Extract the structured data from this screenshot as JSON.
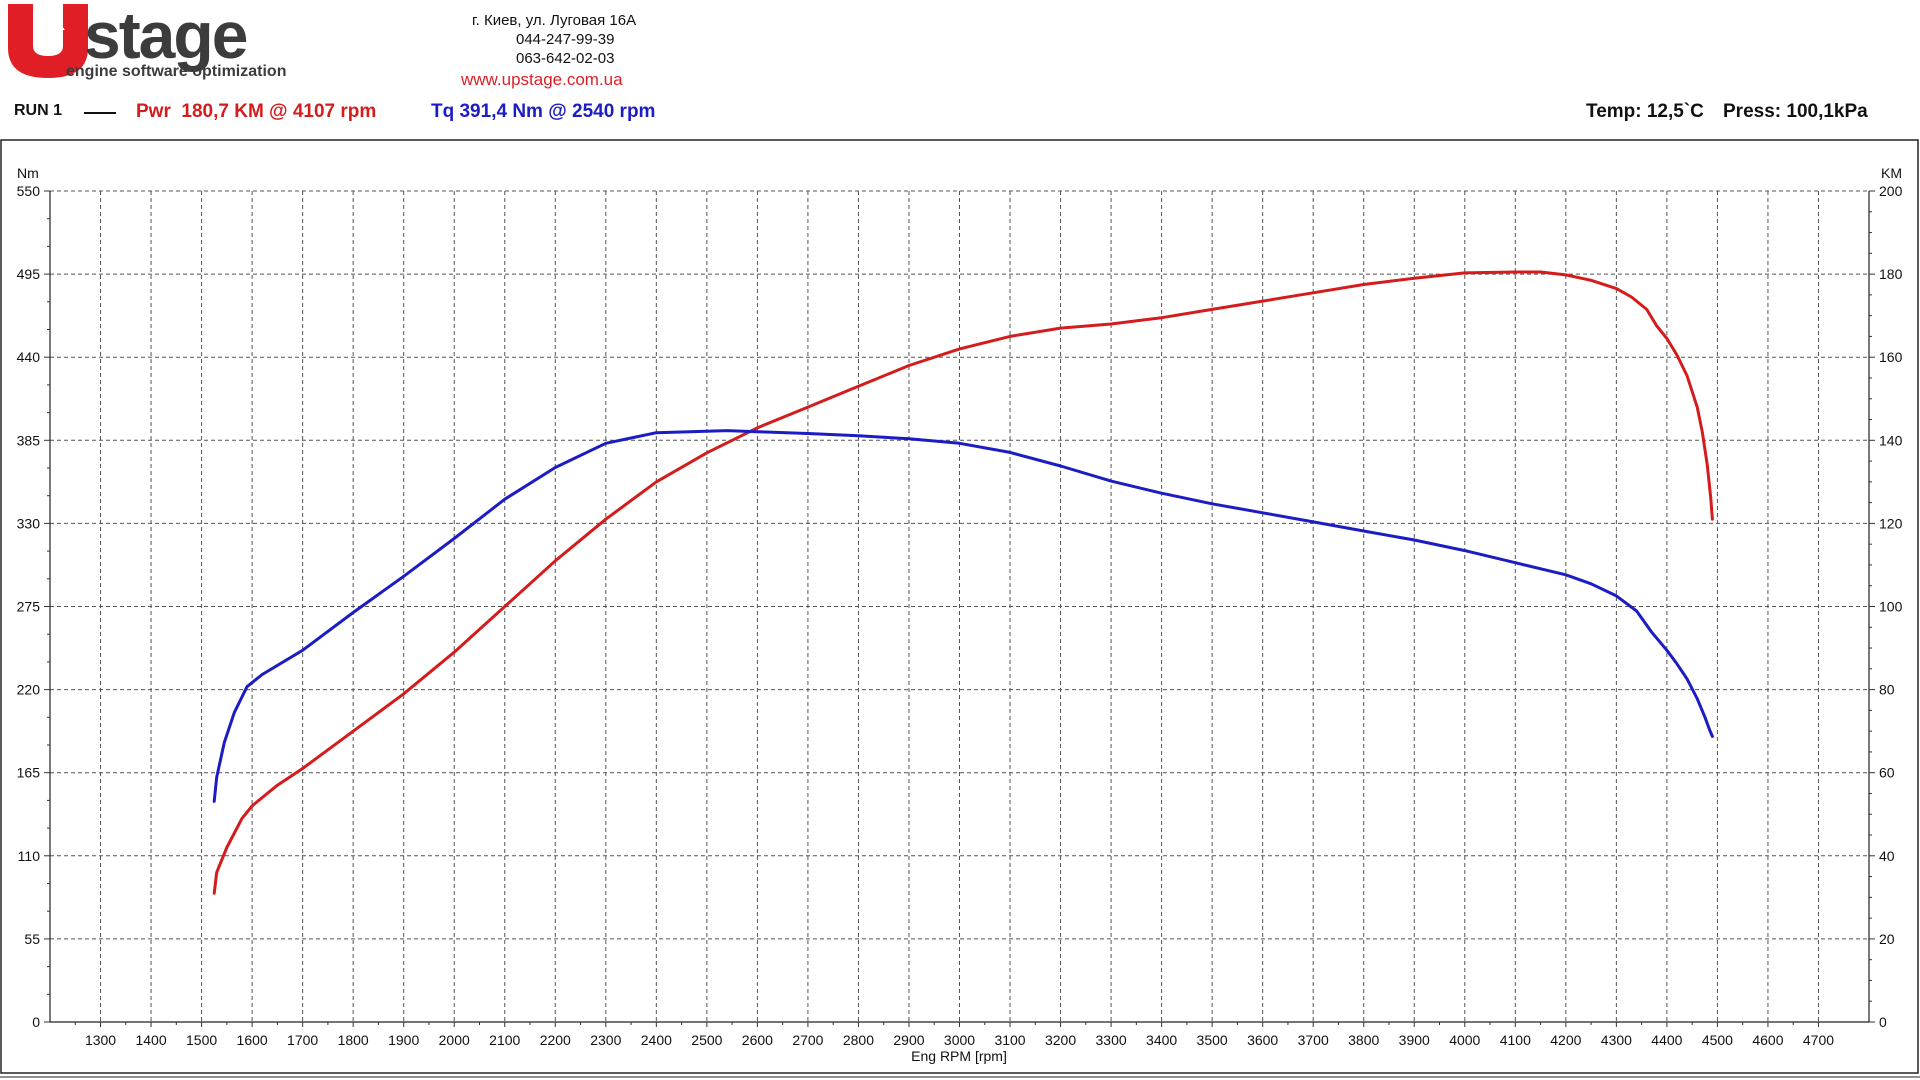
{
  "brand": {
    "logo_letter": "U",
    "logo_word": "stage",
    "tagline": "engine software optimization",
    "address": "г. Киев, ул. Луговая 16А",
    "phone1": "044-247-99-39",
    "phone2": "063-642-02-03",
    "website": "www.upstage.com.ua"
  },
  "header": {
    "run_label": "RUN 1",
    "power_summary": "Pwr  180,7 KM @ 4107 rpm",
    "torque_summary": "Tq 391,4 Nm @ 2540 rpm",
    "temp": "Temp: 12,5`C",
    "press": "Press: 100,1kPa"
  },
  "colors": {
    "power": "#d41c1c",
    "torque": "#1c1cc4",
    "brand_red": "#e01e26",
    "brand_gray": "#3c3c3c"
  },
  "chart_data": {
    "type": "line",
    "xlabel": "Eng RPM [rpm]",
    "ylabel_left": "Nm",
    "ylabel_right": "KM",
    "xlim": [
      1200,
      4800
    ],
    "x_ticks": [
      1300,
      1400,
      1500,
      1600,
      1700,
      1800,
      1900,
      2000,
      2100,
      2200,
      2300,
      2400,
      2500,
      2600,
      2700,
      2800,
      2900,
      3000,
      3100,
      3200,
      3300,
      3400,
      3500,
      3600,
      3700,
      3800,
      3900,
      4000,
      4100,
      4200,
      4300,
      4400,
      4500,
      4600,
      4700
    ],
    "ylim_left": [
      0,
      550
    ],
    "y_ticks_left": [
      0,
      55,
      110,
      165,
      220,
      275,
      330,
      385,
      440,
      495,
      550
    ],
    "ylim_right": [
      0,
      200
    ],
    "y_ticks_right": [
      0,
      20,
      40,
      60,
      80,
      100,
      120,
      140,
      160,
      180,
      200
    ],
    "grid": true,
    "series": [
      {
        "name": "Pwr",
        "axis": "right",
        "x": [
          1525,
          1530,
          1550,
          1580,
          1600,
          1650,
          1700,
          1800,
          1900,
          2000,
          2100,
          2200,
          2300,
          2400,
          2500,
          2600,
          2700,
          2800,
          2900,
          3000,
          3100,
          3200,
          3300,
          3400,
          3500,
          3600,
          3700,
          3800,
          3900,
          4000,
          4100,
          4150,
          4200,
          4250,
          4300,
          4330,
          4360,
          4380,
          4400,
          4420,
          4440,
          4460,
          4470,
          4480,
          4487,
          4490
        ],
        "values": [
          31,
          36,
          42,
          49,
          52,
          57,
          61,
          70,
          79,
          89,
          100,
          111,
          121,
          130,
          137,
          143,
          148,
          153,
          158,
          162,
          165,
          167,
          168,
          169.5,
          171.5,
          173.5,
          175.5,
          177.5,
          179,
          180.3,
          180.5,
          180.5,
          179.8,
          178.5,
          176.5,
          174.5,
          171.5,
          167.5,
          164.5,
          160.5,
          155.5,
          148,
          142,
          134,
          126,
          121
        ]
      },
      {
        "name": "Tq",
        "axis": "left",
        "x": [
          1525,
          1530,
          1545,
          1565,
          1590,
          1620,
          1700,
          1800,
          1900,
          2000,
          2100,
          2200,
          2300,
          2400,
          2540,
          2600,
          2700,
          2800,
          2900,
          3000,
          3100,
          3200,
          3300,
          3400,
          3500,
          3600,
          3700,
          3800,
          3900,
          4000,
          4100,
          4200,
          4250,
          4300,
          4340,
          4370,
          4400,
          4420,
          4440,
          4460,
          4475,
          4485,
          4490
        ],
        "values": [
          146,
          162,
          185,
          205,
          222,
          230,
          246,
          271,
          295,
          320,
          346,
          367,
          383,
          390,
          391.4,
          390.7,
          389.5,
          388,
          386,
          383,
          377,
          368,
          358,
          350,
          343,
          337,
          331,
          325,
          319,
          312,
          304,
          296,
          290,
          282,
          272,
          258,
          246,
          237,
          227,
          214,
          202,
          193,
          189
        ]
      }
    ]
  }
}
